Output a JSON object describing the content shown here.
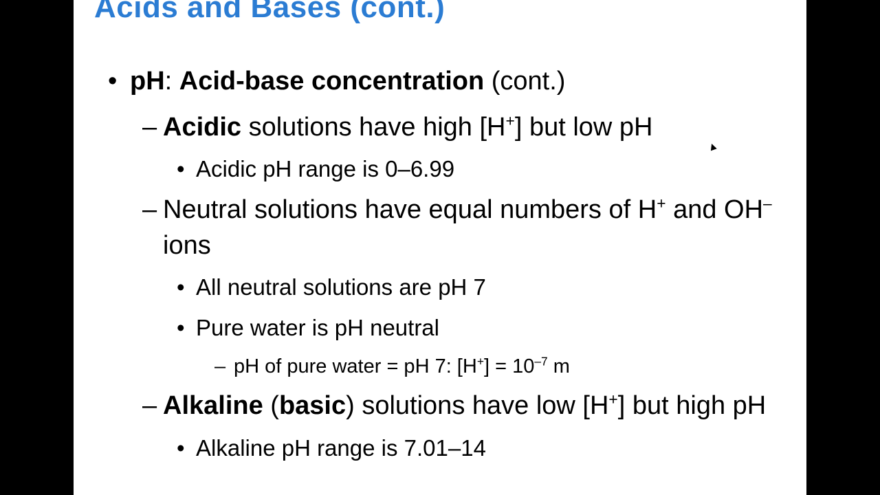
{
  "title": "Acids and Bases (cont.)",
  "colors": {
    "title": "#2b7cd3",
    "text": "#000000",
    "background": "#ffffff",
    "letterbox": "#000000"
  },
  "fontsize": {
    "title": 44,
    "l1": 38,
    "l2": 38,
    "l3": 33,
    "l4": 29
  },
  "bullets": {
    "l1": "•",
    "l2": "–",
    "l3": "•",
    "l4": "–"
  },
  "l1_ph_bold": "pH",
  "l1_sep": ": ",
  "l1_abc_bold": "Acid-base concentration",
  "l1_cont": " (cont.)",
  "acidic_bold": "Acidic",
  "acidic_rest_a": " solutions have high [H",
  "acidic_sup": "+",
  "acidic_rest_b": "] but low pH",
  "acidic_range": "Acidic pH range is 0–6.99",
  "neutral_a": "Neutral solutions have equal numbers of H",
  "neutral_sup1": "+",
  "neutral_b": " and OH",
  "neutral_sup2": "–",
  "neutral_c": " ions",
  "neutral_ph7": "All neutral solutions are pH 7",
  "pure_water": "Pure water is pH neutral",
  "pw_detail_a": "pH of pure water = pH 7: [H",
  "pw_sup1": "+",
  "pw_detail_b": "] = 10",
  "pw_sup2": "–7",
  "pw_detail_c": " m",
  "alk_bold1": "Alkaline",
  "alk_mid": " (",
  "alk_bold2": "basic",
  "alk_rest_a": ") solutions have low [H",
  "alk_sup": "+",
  "alk_rest_b": "] but high pH",
  "alk_range": "Alkaline pH range is 7.01–14"
}
